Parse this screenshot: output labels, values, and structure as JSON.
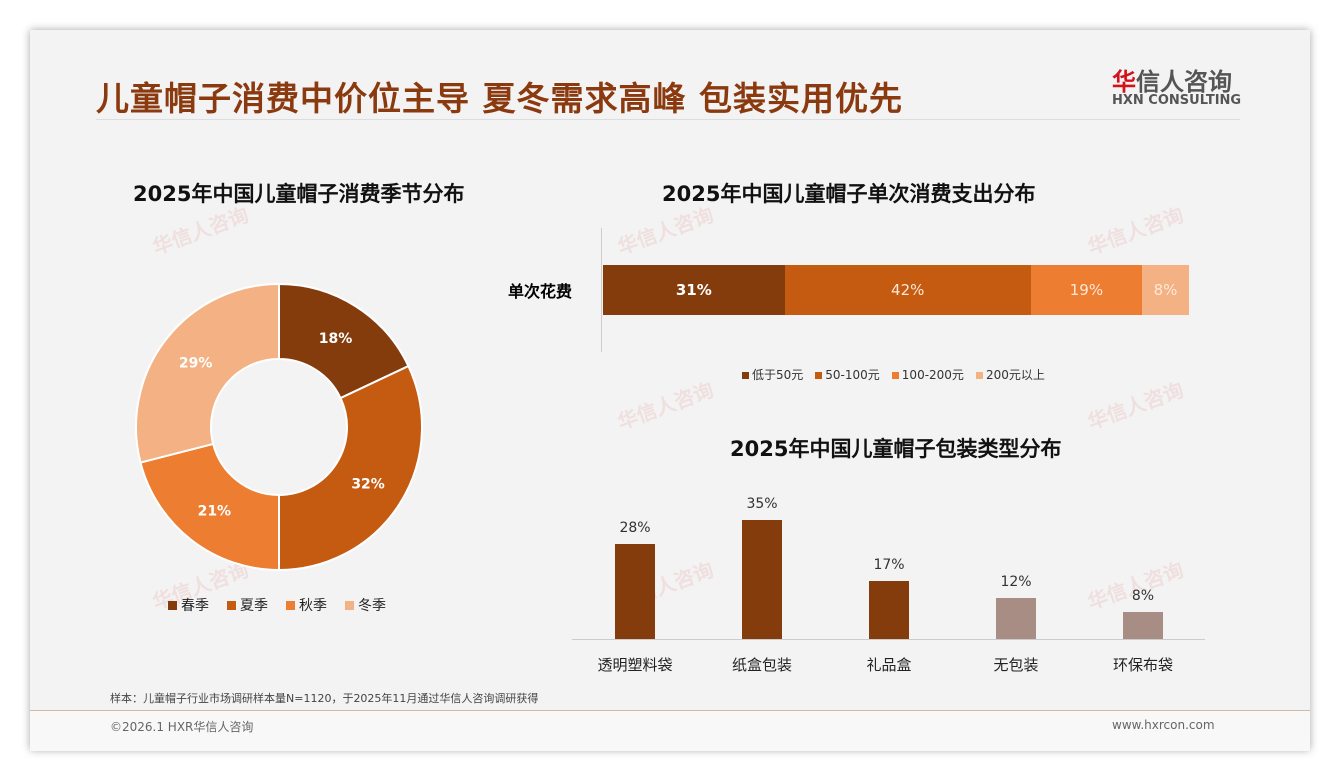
{
  "header": {
    "title": "儿童帽子消费中价位主导 夏冬需求高峰 包装实用优先",
    "logo_cn_red": "华",
    "logo_cn": "信人咨询",
    "logo_en": "HXN CONSULTING"
  },
  "watermark": "华信人咨询",
  "chart_data": [
    {
      "type": "pie",
      "title": "2025年中国儿童帽子消费季节分布",
      "categories": [
        "春季",
        "夏季",
        "秋季",
        "冬季"
      ],
      "values": [
        18,
        32,
        21,
        29
      ],
      "labels": [
        "18%",
        "32%",
        "21%",
        "29%"
      ],
      "colors": [
        "#843c0c",
        "#c55a11",
        "#ed7d31",
        "#f4b183"
      ],
      "legend": "bottom"
    },
    {
      "type": "bar",
      "stacked": true,
      "orientation": "horizontal",
      "title": "2025年中国儿童帽子单次消费支出分布",
      "category": "单次花费",
      "series": [
        {
          "name": "低于50元",
          "value": 31,
          "label": "31%"
        },
        {
          "name": "50-100元",
          "value": 42,
          "label": "42%"
        },
        {
          "name": "100-200元",
          "value": 19,
          "label": "19%"
        },
        {
          "name": "200元以上",
          "value": 8,
          "label": "8%"
        }
      ],
      "colors": [
        "#843c0c",
        "#c55a11",
        "#ed7d31",
        "#f4b183"
      ],
      "legend": "bottom"
    },
    {
      "type": "bar",
      "title": "2025年中国儿童帽子包装类型分布",
      "categories": [
        "透明塑料袋",
        "纸盒包装",
        "礼品盒",
        "无包装",
        "环保布袋"
      ],
      "values": [
        28,
        35,
        17,
        12,
        8
      ],
      "labels": [
        "28%",
        "35%",
        "17%",
        "12%",
        "8%"
      ],
      "colors": [
        "#843c0c",
        "#843c0c",
        "#843c0c",
        "#a88d84",
        "#a88d84"
      ]
    }
  ],
  "footer": {
    "note": "样本：儿童帽子行业市场调研样本量N=1120，于2025年11月通过华信人咨询调研获得",
    "copyright": "©2026.1 HXR华信人咨询",
    "url": "www.hxrcon.com"
  }
}
